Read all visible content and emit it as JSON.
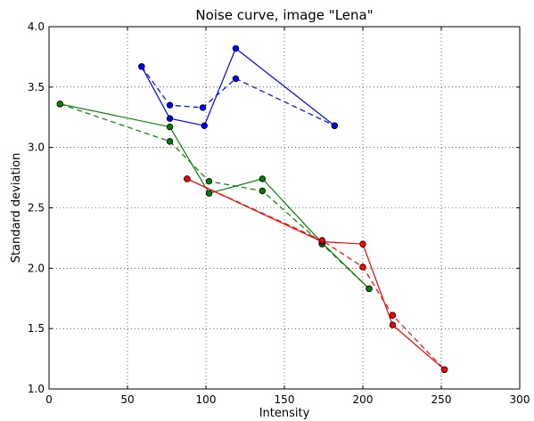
{
  "chart_data": {
    "type": "line",
    "title": "Noise curve, image \"Lena\"",
    "xlabel": "Intensity",
    "ylabel": "Standard deviation",
    "xlim": [
      0,
      300
    ],
    "ylim": [
      1.0,
      4.0
    ],
    "xticks": [
      "0",
      "50",
      "100",
      "150",
      "200",
      "250",
      "300"
    ],
    "yticks": [
      "1.0",
      "1.5",
      "2.0",
      "2.5",
      "3.0",
      "3.5",
      "4.0"
    ],
    "grid": true,
    "series": [
      {
        "color": "#0000ff",
        "style": "solid",
        "x": [
          59,
          77,
          99,
          119,
          182
        ],
        "y": [
          3.67,
          3.24,
          3.18,
          3.82,
          3.18
        ]
      },
      {
        "color": "#0000ff",
        "style": "dashed",
        "x": [
          59,
          77,
          98,
          119,
          182
        ],
        "y": [
          3.67,
          3.35,
          3.33,
          3.57,
          3.18
        ]
      },
      {
        "color": "#008000",
        "style": "solid",
        "x": [
          7,
          77,
          102,
          136,
          174,
          204
        ],
        "y": [
          3.36,
          3.17,
          2.62,
          2.74,
          2.21,
          1.83
        ]
      },
      {
        "color": "#008000",
        "style": "dashed",
        "x": [
          7,
          77,
          102,
          136,
          174,
          204
        ],
        "y": [
          3.36,
          3.05,
          2.72,
          2.64,
          2.2,
          1.83
        ]
      },
      {
        "color": "#ff0000",
        "style": "solid",
        "x": [
          88,
          174,
          200,
          219,
          252
        ],
        "y": [
          2.74,
          2.22,
          2.2,
          1.53,
          1.16
        ]
      },
      {
        "color": "#ff0000",
        "style": "dashed",
        "x": [
          88,
          174,
          200,
          219,
          252
        ],
        "y": [
          2.74,
          2.23,
          2.01,
          1.61,
          1.16
        ]
      }
    ]
  }
}
